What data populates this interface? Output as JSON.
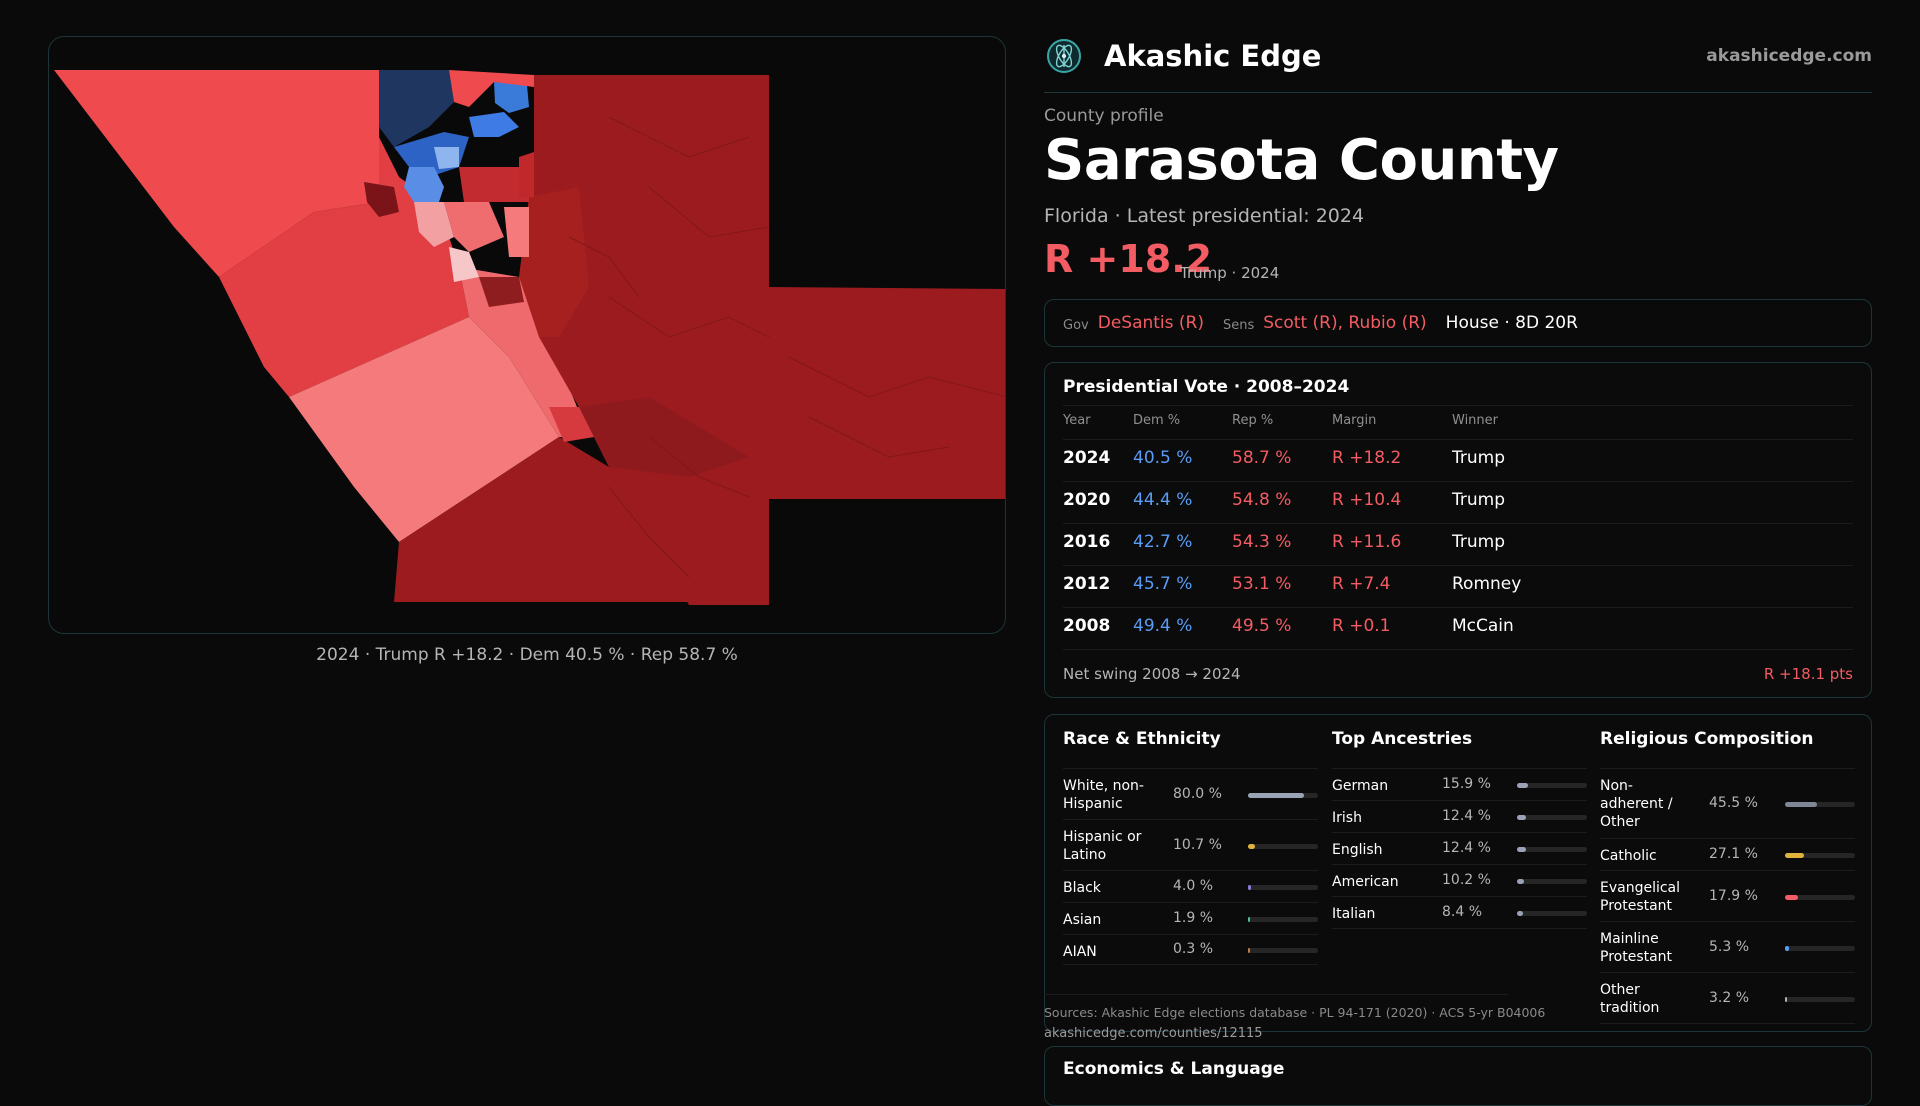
{
  "map": {
    "caption": "2024 · Trump R +18.2 · Dem 40.5 % · Rep 58.7 %"
  },
  "brand": {
    "name": "Akashic Edge",
    "url": "akashicedge.com",
    "logo_icon": "atom-icon"
  },
  "county": {
    "eyebrow": "County profile",
    "name": "Sarasota County",
    "subline": "Florida · Latest presidential: 2024",
    "margin": "R +18.2",
    "margin_note": "Trump · 2024"
  },
  "officials": {
    "gov_label": "Gov",
    "gov": "DeSantis (R)",
    "sens_label": "Sens",
    "sens": "Scott (R), Rubio (R)",
    "house": "House · 8D 20R"
  },
  "presidential": {
    "title": "Presidential Vote · 2008–2024",
    "headers": {
      "year": "Year",
      "dem": "Dem %",
      "rep": "Rep %",
      "margin": "Margin",
      "winner": "Winner"
    },
    "rows": [
      {
        "year": "2024",
        "dem": "40.5 %",
        "rep": "58.7 %",
        "margin": "R +18.2",
        "winner": "Trump"
      },
      {
        "year": "2020",
        "dem": "44.4 %",
        "rep": "54.8 %",
        "margin": "R +10.4",
        "winner": "Trump"
      },
      {
        "year": "2016",
        "dem": "42.7 %",
        "rep": "54.3 %",
        "margin": "R +11.6",
        "winner": "Trump"
      },
      {
        "year": "2012",
        "dem": "45.7 %",
        "rep": "53.1 %",
        "margin": "R +7.4",
        "winner": "Romney"
      },
      {
        "year": "2008",
        "dem": "49.4 %",
        "rep": "49.5 %",
        "margin": "R +0.1",
        "winner": "McCain"
      }
    ],
    "swing_label": "Net swing 2008 → 2024",
    "swing_value": "R +18.1 pts"
  },
  "demographics": {
    "race": {
      "title": "Race & Ethnicity",
      "items": [
        {
          "label": "White, non-Hispanic",
          "value": "80.0 %",
          "pct": 80.0,
          "color": "#9aa3b5"
        },
        {
          "label": "Hispanic or Latino",
          "value": "10.7 %",
          "pct": 10.7,
          "color": "#e0b43a"
        },
        {
          "label": "Black",
          "value": "4.0 %",
          "pct": 4.0,
          "color": "#8a7ad6"
        },
        {
          "label": "Asian",
          "value": "1.9 %",
          "pct": 1.9,
          "color": "#4dbf8a"
        },
        {
          "label": "AIAN",
          "value": "0.3 %",
          "pct": 0.3,
          "color": "#c07a4a"
        }
      ]
    },
    "ancestry": {
      "title": "Top Ancestries",
      "items": [
        {
          "label": "German",
          "value": "15.9 %",
          "pct": 15.9,
          "color": "#9aa3b5"
        },
        {
          "label": "Irish",
          "value": "12.4 %",
          "pct": 12.4,
          "color": "#9aa3b5"
        },
        {
          "label": "English",
          "value": "12.4 %",
          "pct": 12.4,
          "color": "#9aa3b5"
        },
        {
          "label": "American",
          "value": "10.2 %",
          "pct": 10.2,
          "color": "#9aa3b5"
        },
        {
          "label": "Italian",
          "value": "8.4 %",
          "pct": 8.4,
          "color": "#9aa3b5"
        }
      ]
    },
    "religion": {
      "title": "Religious Composition",
      "items": [
        {
          "label": "Non-adherent / Other",
          "value": "45.5 %",
          "pct": 45.5,
          "color": "#7f8796"
        },
        {
          "label": "Catholic",
          "value": "27.1 %",
          "pct": 27.1,
          "color": "#e0b43a"
        },
        {
          "label": "Evangelical Protestant",
          "value": "17.9 %",
          "pct": 17.9,
          "color": "#f25c62"
        },
        {
          "label": "Mainline Protestant",
          "value": "5.3 %",
          "pct": 5.3,
          "color": "#5a9cf5"
        },
        {
          "label": "Other tradition",
          "value": "3.2 %",
          "pct": 3.2,
          "color": "#b0b0b0"
        }
      ]
    },
    "sources": "Sources: Akashic Edge elections database · PL 94-171 (2020) · ACS 5-yr B04006",
    "sources_url": "akashicedge.com/counties/12115"
  },
  "economics": {
    "title": "Economics & Language"
  },
  "colors": {
    "rep": "#f25c62",
    "dem": "#5a9cf5",
    "accent": "#1d3538"
  }
}
